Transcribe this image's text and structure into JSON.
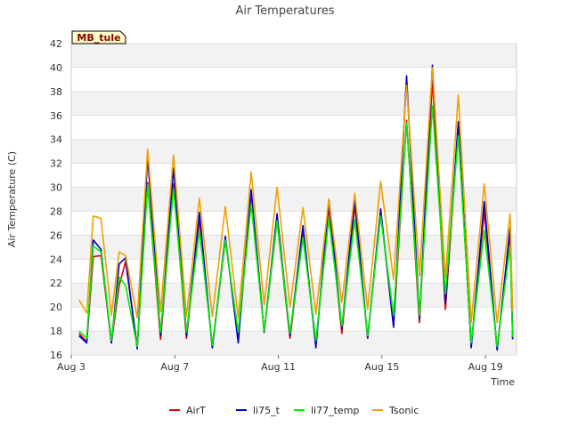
{
  "chart_data": {
    "type": "line",
    "title": "Air Temperatures",
    "xlabel": "Time",
    "ylabel": "Air Temperature (C)",
    "site_label": "MB_tule",
    "xlim": [
      3.0,
      20.2
    ],
    "ylim": [
      16,
      42
    ],
    "y_ticks": [
      16,
      18,
      20,
      22,
      24,
      26,
      28,
      30,
      32,
      34,
      36,
      38,
      40,
      42
    ],
    "x_ticks": [
      {
        "value": 3,
        "label": "Aug 3"
      },
      {
        "value": 7,
        "label": "Aug 7"
      },
      {
        "value": 11,
        "label": "Aug 11"
      },
      {
        "value": 15,
        "label": "Aug 15"
      },
      {
        "value": 19,
        "label": "Aug 19"
      }
    ],
    "grid": "horizontal-bands",
    "legend_position": "bottom-center",
    "series": [
      {
        "name": "AirT",
        "color": "#dd0000",
        "points": [
          [
            3.3,
            17.8
          ],
          [
            3.6,
            17.1
          ],
          [
            3.85,
            24.2
          ],
          [
            4.15,
            24.3
          ],
          [
            4.55,
            17.0
          ],
          [
            4.85,
            21.8
          ],
          [
            5.1,
            23.8
          ],
          [
            5.55,
            16.7
          ],
          [
            5.95,
            30.4
          ],
          [
            6.45,
            17.3
          ],
          [
            6.95,
            30.3
          ],
          [
            7.45,
            17.4
          ],
          [
            7.95,
            27.3
          ],
          [
            8.45,
            16.6
          ],
          [
            8.95,
            25.6
          ],
          [
            9.45,
            17.7
          ],
          [
            9.95,
            29.6
          ],
          [
            10.45,
            17.9
          ],
          [
            10.95,
            27.2
          ],
          [
            11.45,
            17.4
          ],
          [
            11.95,
            26.2
          ],
          [
            12.45,
            16.9
          ],
          [
            12.95,
            28.4
          ],
          [
            13.45,
            17.8
          ],
          [
            13.95,
            28.5
          ],
          [
            14.45,
            17.4
          ],
          [
            14.95,
            28.0
          ],
          [
            15.45,
            18.4
          ],
          [
            15.95,
            35.6
          ],
          [
            16.45,
            18.7
          ],
          [
            16.95,
            39.0
          ],
          [
            17.45,
            19.8
          ],
          [
            17.95,
            35.0
          ],
          [
            18.45,
            16.7
          ],
          [
            18.95,
            28.0
          ],
          [
            19.45,
            16.5
          ],
          [
            19.95,
            26.2
          ],
          [
            20.05,
            17.4
          ]
        ]
      },
      {
        "name": "li75_t",
        "color": "#0000cc",
        "points": [
          [
            3.3,
            17.6
          ],
          [
            3.6,
            17.0
          ],
          [
            3.85,
            25.6
          ],
          [
            4.15,
            24.8
          ],
          [
            4.55,
            17.0
          ],
          [
            4.85,
            23.6
          ],
          [
            5.1,
            24.1
          ],
          [
            5.55,
            16.5
          ],
          [
            5.95,
            32.6
          ],
          [
            6.45,
            17.6
          ],
          [
            6.95,
            31.6
          ],
          [
            7.45,
            17.6
          ],
          [
            7.95,
            27.9
          ],
          [
            8.45,
            16.6
          ],
          [
            8.95,
            25.9
          ],
          [
            9.45,
            17.0
          ],
          [
            9.95,
            29.8
          ],
          [
            10.45,
            17.9
          ],
          [
            10.95,
            27.8
          ],
          [
            11.45,
            17.6
          ],
          [
            11.95,
            26.8
          ],
          [
            12.45,
            16.6
          ],
          [
            12.95,
            29.0
          ],
          [
            13.45,
            18.2
          ],
          [
            13.95,
            29.0
          ],
          [
            14.45,
            17.4
          ],
          [
            14.95,
            28.2
          ],
          [
            15.45,
            18.3
          ],
          [
            15.95,
            39.3
          ],
          [
            16.45,
            19.0
          ],
          [
            16.95,
            40.2
          ],
          [
            17.45,
            20.3
          ],
          [
            17.95,
            35.5
          ],
          [
            18.45,
            16.6
          ],
          [
            18.95,
            28.8
          ],
          [
            19.45,
            16.4
          ],
          [
            19.95,
            26.6
          ],
          [
            20.05,
            17.3
          ]
        ]
      },
      {
        "name": "li77_temp",
        "color": "#00ee00",
        "points": [
          [
            3.3,
            18.0
          ],
          [
            3.6,
            17.4
          ],
          [
            3.85,
            25.1
          ],
          [
            4.15,
            24.6
          ],
          [
            4.55,
            17.2
          ],
          [
            4.85,
            22.5
          ],
          [
            5.1,
            21.8
          ],
          [
            5.55,
            16.7
          ],
          [
            5.95,
            30.2
          ],
          [
            6.45,
            17.9
          ],
          [
            6.95,
            29.9
          ],
          [
            7.45,
            17.9
          ],
          [
            7.95,
            26.4
          ],
          [
            8.45,
            16.8
          ],
          [
            8.95,
            25.6
          ],
          [
            9.45,
            17.9
          ],
          [
            9.95,
            28.6
          ],
          [
            10.45,
            18.0
          ],
          [
            10.95,
            27.2
          ],
          [
            11.45,
            17.8
          ],
          [
            11.95,
            25.8
          ],
          [
            12.45,
            17.2
          ],
          [
            12.95,
            27.4
          ],
          [
            13.45,
            18.4
          ],
          [
            13.95,
            27.3
          ],
          [
            14.45,
            17.6
          ],
          [
            14.95,
            27.6
          ],
          [
            15.45,
            19.3
          ],
          [
            15.95,
            35.4
          ],
          [
            16.45,
            19.3
          ],
          [
            16.95,
            36.8
          ],
          [
            17.45,
            21.1
          ],
          [
            17.95,
            34.3
          ],
          [
            18.45,
            17.0
          ],
          [
            18.95,
            26.4
          ],
          [
            19.45,
            16.7
          ],
          [
            19.95,
            25.1
          ],
          [
            20.05,
            17.5
          ]
        ]
      },
      {
        "name": "Tsonic",
        "color": "#f0a000",
        "points": [
          [
            3.3,
            20.6
          ],
          [
            3.6,
            19.5
          ],
          [
            3.85,
            27.6
          ],
          [
            4.15,
            27.4
          ],
          [
            4.55,
            19.3
          ],
          [
            4.85,
            24.6
          ],
          [
            5.1,
            24.3
          ],
          [
            5.55,
            19.1
          ],
          [
            5.95,
            33.2
          ],
          [
            6.45,
            19.6
          ],
          [
            6.95,
            32.7
          ],
          [
            7.45,
            19.2
          ],
          [
            7.95,
            29.1
          ],
          [
            8.45,
            19.2
          ],
          [
            8.95,
            28.4
          ],
          [
            9.45,
            19.1
          ],
          [
            9.95,
            31.3
          ],
          [
            10.45,
            20.2
          ],
          [
            10.95,
            30.0
          ],
          [
            11.45,
            20.0
          ],
          [
            11.95,
            28.3
          ],
          [
            12.45,
            19.4
          ],
          [
            12.95,
            29.0
          ],
          [
            13.45,
            20.4
          ],
          [
            13.95,
            29.5
          ],
          [
            14.45,
            19.8
          ],
          [
            14.95,
            30.5
          ],
          [
            15.45,
            22.3
          ],
          [
            15.95,
            38.5
          ],
          [
            16.45,
            22.6
          ],
          [
            16.95,
            40.0
          ],
          [
            17.45,
            22.4
          ],
          [
            17.95,
            37.7
          ],
          [
            18.45,
            18.7
          ],
          [
            18.95,
            30.3
          ],
          [
            19.45,
            18.7
          ],
          [
            19.95,
            27.8
          ],
          [
            20.05,
            19.7
          ]
        ]
      }
    ]
  }
}
